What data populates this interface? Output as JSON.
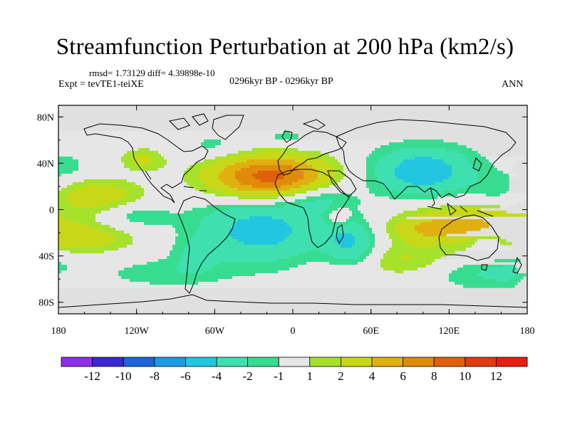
{
  "title": "Streamfunction Perturbation at 200 hPa (km2/s)",
  "stats": "rmsd= 1.73129 diff= 4.39898e-10",
  "expt": "Expt = tevTE1-teiXE",
  "period": "0296kyr BP - 0296kyr BP",
  "season": "ANN",
  "lat_ticks": [
    "80N",
    "40N",
    "0",
    "40S",
    "80S"
  ],
  "lon_ticks": [
    "180",
    "120W",
    "60W",
    "0",
    "60E",
    "120E",
    "180"
  ],
  "colorbar": {
    "labels": [
      "-12",
      "-10",
      "-8",
      "-6",
      "-4",
      "-2",
      "-1",
      "1",
      "2",
      "4",
      "6",
      "8",
      "10",
      "12"
    ],
    "colors": [
      "#8c30e8",
      "#3a28d0",
      "#1c64d8",
      "#1a9be0",
      "#22c6e0",
      "#3ee0b0",
      "#38dc90",
      "#e6e6e6",
      "#a6e22c",
      "#c8d818",
      "#e0b010",
      "#e08a0a",
      "#e0600a",
      "#e03a10",
      "#e42010"
    ]
  },
  "field": {
    "land": "#e0e0e0",
    "units": "km2/s",
    "lobes": [
      {
        "lon": -18,
        "lat": 28,
        "a": 9,
        "sx": 32,
        "sy": 13
      },
      {
        "lon": 100,
        "lat": 33,
        "a": -5.5,
        "sx": 28,
        "sy": 15
      },
      {
        "lon": -25,
        "lat": -18,
        "a": -5,
        "sx": 35,
        "sy": 20
      },
      {
        "lon": 43,
        "lat": -25,
        "a": -3.5,
        "sx": 14,
        "sy": 13
      },
      {
        "lon": 20,
        "lat": 10,
        "a": -2.5,
        "sx": 20,
        "sy": 9
      },
      {
        "lon": 135,
        "lat": -12,
        "a": 4.2,
        "sx": 35,
        "sy": 12
      },
      {
        "lon": -150,
        "lat": 12,
        "a": 3.2,
        "sx": 25,
        "sy": 10
      },
      {
        "lon": -160,
        "lat": -25,
        "a": 2.8,
        "sx": 28,
        "sy": 9
      },
      {
        "lon": -115,
        "lat": 43,
        "a": 2.4,
        "sx": 12,
        "sy": 7
      },
      {
        "lon": -120,
        "lat": -5,
        "a": -1.8,
        "sx": 18,
        "sy": 8
      },
      {
        "lon": -100,
        "lat": -55,
        "a": -1.6,
        "sx": 35,
        "sy": 9
      },
      {
        "lon": 35,
        "lat": -7,
        "a": 2.3,
        "sx": 7,
        "sy": 6
      },
      {
        "lon": 80,
        "lat": -43,
        "a": 2.2,
        "sx": 32,
        "sy": 10
      },
      {
        "lon": 140,
        "lat": -55,
        "a": -2.0,
        "sx": 25,
        "sy": 10
      },
      {
        "lon": 175,
        "lat": -55,
        "a": -1.8,
        "sx": 15,
        "sy": 10
      },
      {
        "lon": -175,
        "lat": 37,
        "a": -1.7,
        "sx": 12,
        "sy": 8
      },
      {
        "lon": -60,
        "lat": 55,
        "a": -1.5,
        "sx": 18,
        "sy": 8
      },
      {
        "lon": -5,
        "lat": 62,
        "a": -1.5,
        "sx": 15,
        "sy": 6
      },
      {
        "lon": 100,
        "lat": -18,
        "a": 2.2,
        "sx": 18,
        "sy": 8
      },
      {
        "lon": 50,
        "lat": -40,
        "a": -1.7,
        "sx": 15,
        "sy": 10
      },
      {
        "lon": -178,
        "lat": -62,
        "a": 2.0,
        "sx": 8,
        "sy": 8
      },
      {
        "lon": 150,
        "lat": -28,
        "a": -2.2,
        "sx": 8,
        "sy": 5
      },
      {
        "lon": 160,
        "lat": 15,
        "a": -1.6,
        "sx": 15,
        "sy": 10
      },
      {
        "lon": -75,
        "lat": -40,
        "a": -1.5,
        "sx": 12,
        "sy": 10
      }
    ]
  }
}
